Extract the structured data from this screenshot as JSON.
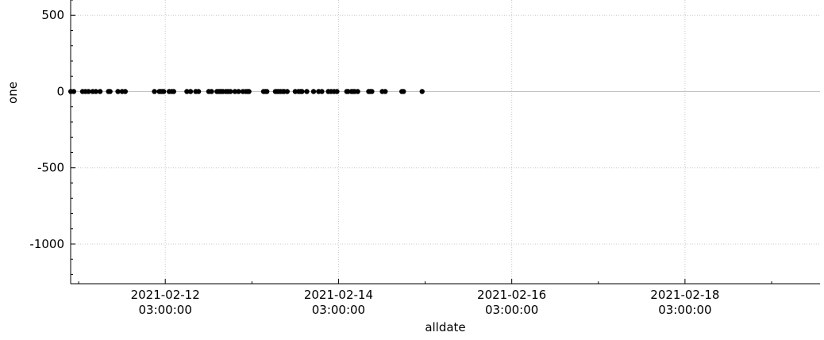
{
  "chart_data": {
    "type": "scatter",
    "xlabel": "alldate",
    "ylabel": "one",
    "x_axis_type": "datetime",
    "xlim": [
      "2021-02-11 00:47:00",
      "2021-02-19 16:25:00"
    ],
    "ylim": [
      -1260,
      600
    ],
    "x_ticks": [
      {
        "value": "2021-02-12 03:00:00",
        "label_line1": "2021-02-12",
        "label_line2": "03:00:00"
      },
      {
        "value": "2021-02-14 03:00:00",
        "label_line1": "2021-02-14",
        "label_line2": "03:00:00"
      },
      {
        "value": "2021-02-16 03:00:00",
        "label_line1": "2021-02-16",
        "label_line2": "03:00:00"
      },
      {
        "value": "2021-02-18 03:00:00",
        "label_line1": "2021-02-18",
        "label_line2": "03:00:00"
      }
    ],
    "y_ticks": [
      500,
      0,
      -500,
      -1000
    ],
    "y_tick_labels": [
      "500",
      "0",
      "-500",
      "-1000"
    ],
    "grid": true,
    "horizontal_reference_line": 0,
    "marker_color": "#000000",
    "x": [
      "2021-02-11 00:49",
      "2021-02-11 01:38",
      "2021-02-11 04:05",
      "2021-02-11 04:54",
      "2021-02-11 05:44",
      "2021-02-11 06:54",
      "2021-02-11 07:46",
      "2021-02-11 08:56",
      "2021-02-11 11:16",
      "2021-02-11 11:42",
      "2021-02-11 13:53",
      "2021-02-11 15:03",
      "2021-02-11 15:55",
      "2021-02-12 00:00",
      "2021-02-12 01:21",
      "2021-02-12 01:44",
      "2021-02-12 02:11",
      "2021-02-12 02:34",
      "2021-02-12 04:05",
      "2021-02-12 04:48",
      "2021-02-12 05:20",
      "2021-02-12 08:59",
      "2021-02-12 10:00",
      "2021-02-12 11:27",
      "2021-02-12 12:13",
      "2021-02-12 15:03",
      "2021-02-12 15:49",
      "2021-02-12 17:19",
      "2021-02-12 17:52",
      "2021-02-12 18:16",
      "2021-02-12 18:36",
      "2021-02-12 18:59",
      "2021-02-12 19:49",
      "2021-02-12 20:22",
      "2021-02-12 21:03",
      "2021-02-12 22:18",
      "2021-02-12 23:18",
      "2021-02-13 00:31",
      "2021-02-13 01:21",
      "2021-02-13 01:50",
      "2021-02-13 02:11",
      "2021-02-13 06:14",
      "2021-02-13 06:43",
      "2021-02-13 07:09",
      "2021-02-13 09:31",
      "2021-02-13 10:00",
      "2021-02-13 10:26",
      "2021-02-13 10:57",
      "2021-02-13 11:38",
      "2021-02-13 11:55",
      "2021-02-13 12:47",
      "2021-02-13 15:01",
      "2021-02-13 15:55",
      "2021-02-13 16:29",
      "2021-02-13 16:52",
      "2021-02-13 18:13",
      "2021-02-13 20:05",
      "2021-02-13 21:29",
      "2021-02-13 22:23",
      "2021-02-14 00:11",
      "2021-02-14 00:57",
      "2021-02-14 01:47",
      "2021-02-14 02:34",
      "2021-02-14 05:17",
      "2021-02-14 05:38",
      "2021-02-14 06:37",
      "2021-02-14 07:06",
      "2021-02-14 07:29",
      "2021-02-14 08:19",
      "2021-02-14 11:22",
      "2021-02-14 11:45",
      "2021-02-14 12:14",
      "2021-02-14 15:08",
      "2021-02-14 15:57",
      "2021-02-14 20:33",
      "2021-02-14 21:00",
      "2021-02-15 02:10"
    ],
    "y": [
      0,
      0,
      0,
      0,
      0,
      0,
      0,
      0,
      0,
      0,
      0,
      0,
      0,
      0,
      0,
      0,
      0,
      0,
      0,
      0,
      0,
      0,
      0,
      0,
      0,
      0,
      0,
      0,
      0,
      0,
      0,
      0,
      0,
      0,
      0,
      0,
      0,
      0,
      0,
      0,
      0,
      0,
      0,
      0,
      0,
      0,
      0,
      0,
      0,
      0,
      0,
      0,
      0,
      0,
      0,
      0,
      0,
      0,
      0,
      0,
      0,
      0,
      0,
      0,
      0,
      0,
      0,
      0,
      0,
      0,
      0,
      0,
      0,
      0,
      0,
      0,
      0
    ]
  }
}
